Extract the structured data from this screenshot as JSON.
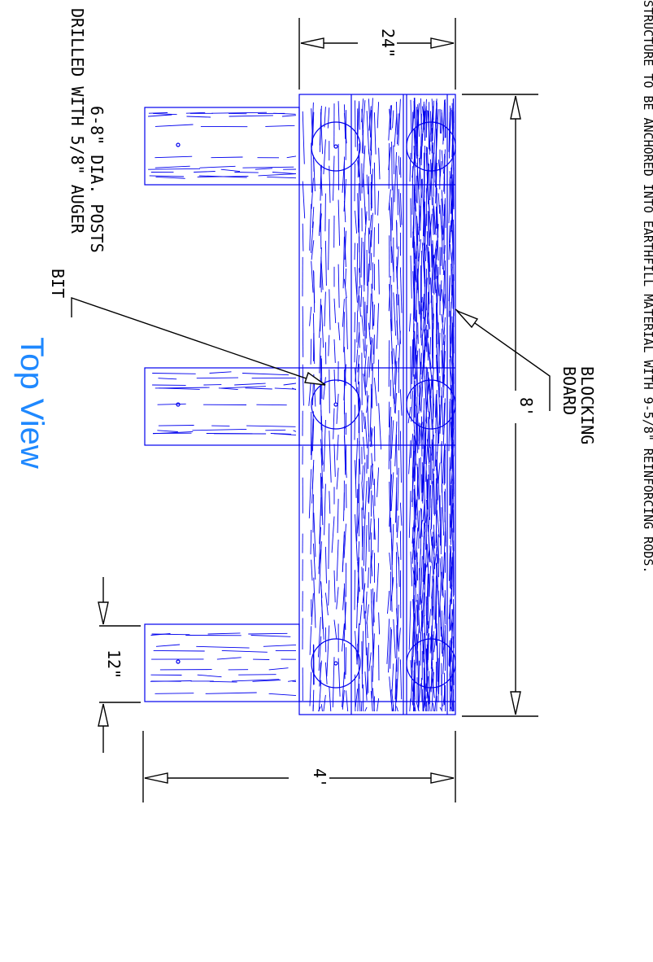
{
  "note": "STRUCTURE TO BE ANCHORED INTO EARTHFILL MATERIAL WITH 9-5/8\" REINFORCING RODS.",
  "callouts": {
    "posts_line1": "6-8\" DIA. POSTS",
    "posts_line2": "DRILLED WITH 5/8\" AUGER",
    "posts_line3": "BIT",
    "blocking_line1": "BLOCKING",
    "blocking_line2": "BOARD"
  },
  "dimensions": {
    "width": "24\"",
    "length": "8'",
    "post_width": "12\"",
    "depth": "4'"
  },
  "title": "Top View",
  "colors": {
    "wood": "#0000ee",
    "title": "#1e88ff",
    "dimension": "#000000"
  }
}
